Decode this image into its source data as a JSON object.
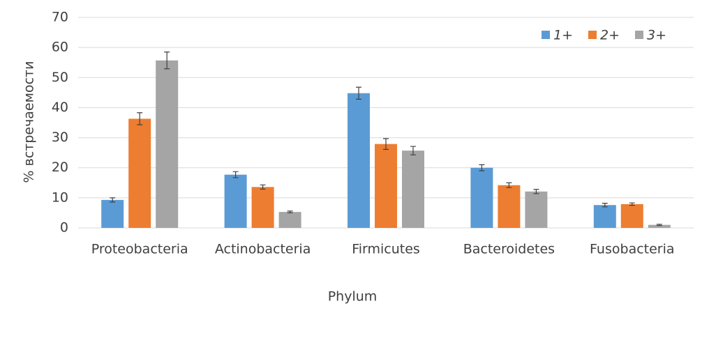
{
  "chart_data": {
    "type": "bar",
    "x_label": "Phylum",
    "y_label": "% встречаемости",
    "categories": [
      "Proteobacteria",
      "Actinobacteria",
      "Firmicutes",
      "Bacteroidetes",
      "Fusobacteria"
    ],
    "series": [
      {
        "name": "1+",
        "color": "#5b9bd5",
        "values": [
          9.3,
          17.7,
          44.8,
          20.0,
          7.6
        ],
        "errors": [
          0.7,
          1.0,
          2.0,
          1.0,
          0.6
        ]
      },
      {
        "name": "2+",
        "color": "#ed7d31",
        "values": [
          36.3,
          13.6,
          27.9,
          14.2,
          7.9
        ],
        "errors": [
          2.0,
          0.7,
          1.8,
          0.8,
          0.4
        ]
      },
      {
        "name": "3+",
        "color": "#a5a5a5",
        "values": [
          55.7,
          5.3,
          25.7,
          12.1,
          1.0
        ],
        "errors": [
          2.8,
          0.3,
          1.4,
          0.7,
          0.2
        ]
      }
    ],
    "ylim": [
      0,
      70
    ],
    "yticks": [
      0,
      10,
      20,
      30,
      40,
      50,
      60,
      70
    ],
    "grid": true,
    "legend": "top-right"
  }
}
